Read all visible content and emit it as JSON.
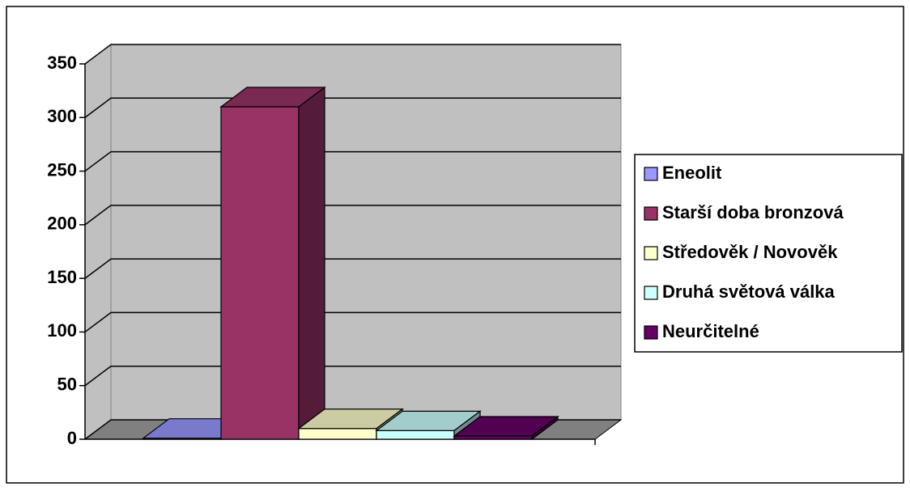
{
  "chart_data": {
    "type": "bar3d",
    "categories": [
      null
    ],
    "series": [
      {
        "name": "Eneolit",
        "color": "#9999ff",
        "values": [
          1
        ]
      },
      {
        "name": "Starší doba bronzová",
        "color": "#993366",
        "values": [
          310
        ]
      },
      {
        "name": "Středověk / Novověk",
        "color": "#ffffcc",
        "values": [
          10
        ]
      },
      {
        "name": "Druhá světová válka",
        "color": "#ccffff",
        "values": [
          8
        ]
      },
      {
        "name": "Neurčitelné",
        "color": "#660066",
        "values": [
          3
        ]
      }
    ],
    "ylim": [
      0,
      350
    ],
    "yticks": [
      0,
      50,
      100,
      150,
      200,
      250,
      300,
      350
    ],
    "grid": true,
    "legend": "right"
  }
}
